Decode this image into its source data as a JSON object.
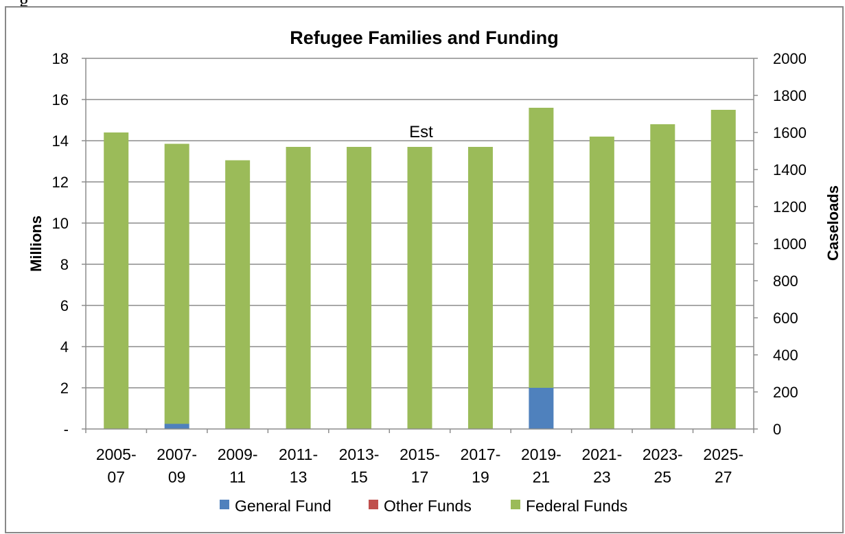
{
  "page_fragment_text": "g",
  "chart_data": {
    "type": "bar",
    "stacked": true,
    "title": "Refugee Families and Funding",
    "ylabel": "Millions",
    "y2label": "Caseloads",
    "categories": [
      [
        "2005-",
        "07"
      ],
      [
        "2007-",
        "09"
      ],
      [
        "2009-",
        "11"
      ],
      [
        "2011-",
        "13"
      ],
      [
        "2013-",
        "15"
      ],
      [
        "2015-",
        "17"
      ],
      [
        "2017-",
        "19"
      ],
      [
        "2019-",
        "21"
      ],
      [
        "2021-",
        "23"
      ],
      [
        "2023-",
        "25"
      ],
      [
        "2025-",
        "27"
      ]
    ],
    "series": [
      {
        "name": "General Fund",
        "color": "#4f81bd",
        "values": [
          0,
          0.25,
          0,
          0,
          0,
          0,
          0,
          2.0,
          0,
          0,
          0
        ]
      },
      {
        "name": "Other Funds",
        "color": "#c0504d",
        "values": [
          0,
          0,
          0,
          0,
          0,
          0,
          0,
          0,
          0,
          0,
          0
        ]
      },
      {
        "name": "Federal Funds",
        "color": "#9bbb59",
        "values": [
          14.4,
          13.6,
          13.05,
          13.7,
          13.7,
          13.7,
          13.7,
          13.6,
          14.2,
          14.8,
          15.5
        ]
      }
    ],
    "ylim": [
      0,
      18
    ],
    "y_ticks": [
      "-",
      "2",
      "4",
      "6",
      "8",
      "10",
      "12",
      "14",
      "16",
      "18"
    ],
    "y2lim": [
      0,
      2000
    ],
    "y2_ticks": [
      "0",
      "200",
      "400",
      "600",
      "800",
      "1000",
      "1200",
      "1400",
      "1600",
      "1800",
      "2000"
    ],
    "annotation": {
      "text": "Est",
      "category_index": 5
    },
    "grid": true,
    "legend_position": "bottom"
  }
}
